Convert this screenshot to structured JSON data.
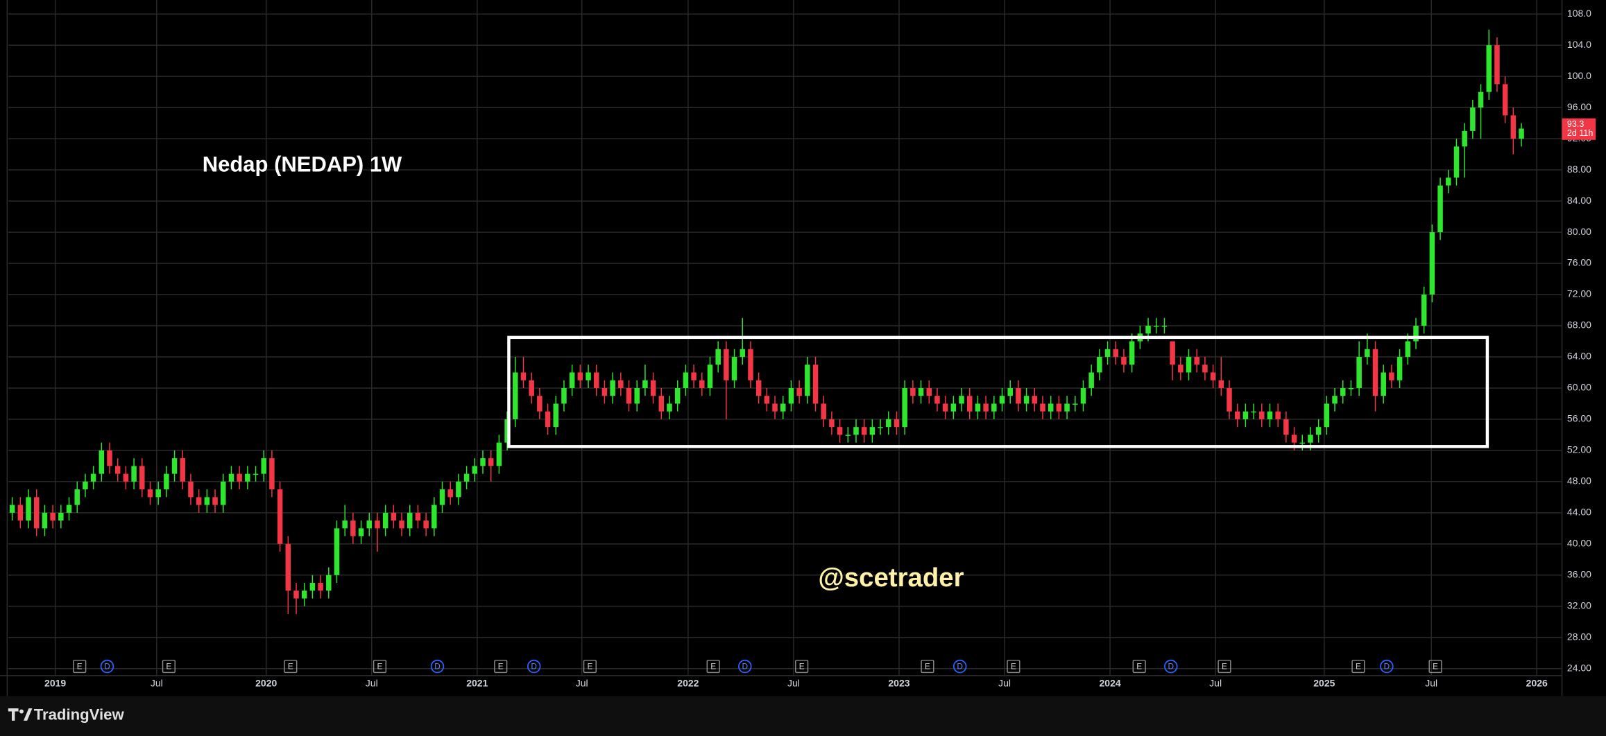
{
  "chart_data": {
    "type": "candlestick",
    "title": "Nedap (NEDAP) 1W",
    "watermark": "@scetrader",
    "brand": "TradingView",
    "up_color": "#2ee62e",
    "down_color": "#f23645",
    "grid": true,
    "countdown": "2d 11h",
    "xlim": [
      -0.5,
      191
    ],
    "xticks": [
      {
        "value": 5.3,
        "label": "2019"
      },
      {
        "value": 17.8,
        "label": "Jul"
      },
      {
        "value": 31.3,
        "label": "2020"
      },
      {
        "value": 44.3,
        "label": "Jul"
      },
      {
        "value": 57.3,
        "label": "2021"
      },
      {
        "value": 70.2,
        "label": "Jul"
      },
      {
        "value": 83.3,
        "label": "2022"
      },
      {
        "value": 96.3,
        "label": "Jul"
      },
      {
        "value": 109.3,
        "label": "2023"
      },
      {
        "value": 122.3,
        "label": "Jul"
      },
      {
        "value": 135.3,
        "label": "2024"
      },
      {
        "value": 148.3,
        "label": "Jul"
      },
      {
        "value": 161.7,
        "label": "2025"
      },
      {
        "value": 174.9,
        "label": "Jul"
      },
      {
        "value": 187.9,
        "label": "2026"
      }
    ],
    "ylim": [
      23.1,
      109.8
    ],
    "yticks": [
      {
        "value": 24,
        "label": "24.00"
      },
      {
        "value": 28,
        "label": "28.00"
      },
      {
        "value": 32,
        "label": "32.00"
      },
      {
        "value": 36,
        "label": "36.00"
      },
      {
        "value": 40,
        "label": "40.00"
      },
      {
        "value": 44,
        "label": "44.00"
      },
      {
        "value": 48,
        "label": "48.00"
      },
      {
        "value": 52,
        "label": "52.00"
      },
      {
        "value": 56,
        "label": "56.00"
      },
      {
        "value": 60,
        "label": "60.00"
      },
      {
        "value": 64,
        "label": "64.00"
      },
      {
        "value": 68,
        "label": "68.00"
      },
      {
        "value": 72,
        "label": "72.00"
      },
      {
        "value": 76,
        "label": "76.00"
      },
      {
        "value": 80,
        "label": "80.00"
      },
      {
        "value": 84,
        "label": "84.00"
      },
      {
        "value": 88,
        "label": "88.00"
      },
      {
        "value": 92,
        "label": "92.00"
      },
      {
        "value": 96,
        "label": "96.00"
      },
      {
        "value": 100,
        "label": "100.0"
      },
      {
        "value": 104,
        "label": "104.0"
      },
      {
        "value": 108,
        "label": "108.0"
      }
    ],
    "box": {
      "x": [
        61.2,
        181.8
      ],
      "y": [
        52.5,
        66.5
      ]
    },
    "events": [
      {
        "label": "E",
        "x": 8.3
      },
      {
        "label": "D",
        "x": 11.7
      },
      {
        "label": "E",
        "x": 19.3
      },
      {
        "label": "E",
        "x": 34.3
      },
      {
        "label": "E",
        "x": 45.3
      },
      {
        "label": "D",
        "x": 52.4
      },
      {
        "label": "E",
        "x": 60.2
      },
      {
        "label": "D",
        "x": 64.3
      },
      {
        "label": "E",
        "x": 71.2
      },
      {
        "label": "E",
        "x": 86.4
      },
      {
        "label": "D",
        "x": 90.3
      },
      {
        "label": "E",
        "x": 97.3
      },
      {
        "label": "E",
        "x": 112.8
      },
      {
        "label": "D",
        "x": 116.8
      },
      {
        "label": "E",
        "x": 123.4
      },
      {
        "label": "E",
        "x": 138.9
      },
      {
        "label": "D",
        "x": 142.8
      },
      {
        "label": "E",
        "x": 149.4
      },
      {
        "label": "E",
        "x": 165.9
      },
      {
        "label": "D",
        "x": 169.4
      },
      {
        "label": "E",
        "x": 175.4
      }
    ],
    "ohlc": [
      [
        44,
        46,
        43,
        45
      ],
      [
        45,
        46,
        42,
        43
      ],
      [
        43,
        47,
        42,
        46
      ],
      [
        46,
        47,
        41,
        42
      ],
      [
        42,
        45,
        41,
        44
      ],
      [
        44,
        45,
        42,
        43
      ],
      [
        43,
        45,
        42,
        44
      ],
      [
        44,
        46,
        43,
        45
      ],
      [
        45,
        48,
        44,
        47
      ],
      [
        47,
        49,
        46,
        48
      ],
      [
        48,
        50,
        47,
        49
      ],
      [
        49,
        53,
        48,
        52
      ],
      [
        52,
        53,
        49,
        50
      ],
      [
        50,
        51,
        48,
        49
      ],
      [
        49,
        50,
        47,
        48
      ],
      [
        48,
        51,
        47,
        50
      ],
      [
        50,
        51,
        46,
        47
      ],
      [
        47,
        48,
        45,
        46
      ],
      [
        46,
        48,
        45,
        47
      ],
      [
        47,
        50,
        46,
        49
      ],
      [
        49,
        52,
        48,
        51
      ],
      [
        51,
        52,
        47,
        48
      ],
      [
        48,
        49,
        45,
        46
      ],
      [
        46,
        47,
        44,
        45
      ],
      [
        45,
        47,
        44,
        46
      ],
      [
        46,
        47,
        44,
        45
      ],
      [
        45,
        49,
        44,
        48
      ],
      [
        48,
        50,
        47,
        49
      ],
      [
        49,
        50,
        47,
        48
      ],
      [
        48,
        50,
        47,
        49
      ],
      [
        49,
        50,
        48,
        49
      ],
      [
        49,
        52,
        48,
        51
      ],
      [
        51,
        52,
        46,
        47
      ],
      [
        47,
        48,
        39,
        40
      ],
      [
        40,
        41,
        31,
        34
      ],
      [
        34,
        35,
        31,
        33
      ],
      [
        33,
        35,
        32,
        34
      ],
      [
        34,
        36,
        33,
        35
      ],
      [
        35,
        36,
        33,
        34
      ],
      [
        34,
        37,
        33,
        36
      ],
      [
        36,
        43,
        35,
        42
      ],
      [
        42,
        45,
        41,
        43
      ],
      [
        43,
        44,
        40,
        41
      ],
      [
        41,
        43,
        40,
        42
      ],
      [
        42,
        44,
        41,
        43
      ],
      [
        43,
        44,
        39,
        42
      ],
      [
        42,
        45,
        41,
        44
      ],
      [
        44,
        45,
        42,
        43
      ],
      [
        43,
        44,
        41,
        42
      ],
      [
        42,
        45,
        41,
        44
      ],
      [
        44,
        45,
        42,
        43
      ],
      [
        43,
        44,
        41,
        42
      ],
      [
        42,
        46,
        41,
        45
      ],
      [
        45,
        48,
        44,
        47
      ],
      [
        47,
        48,
        45,
        46
      ],
      [
        46,
        49,
        45,
        48
      ],
      [
        48,
        50,
        47,
        49
      ],
      [
        49,
        51,
        48,
        50
      ],
      [
        50,
        52,
        49,
        51
      ],
      [
        51,
        52,
        48,
        50
      ],
      [
        50,
        54,
        49,
        53
      ],
      [
        53,
        57,
        52,
        56
      ],
      [
        56,
        64,
        55,
        62
      ],
      [
        62,
        64,
        60,
        61
      ],
      [
        61,
        62,
        58,
        59
      ],
      [
        59,
        60,
        56,
        57
      ],
      [
        57,
        58,
        54,
        55
      ],
      [
        55,
        59,
        54,
        58
      ],
      [
        58,
        61,
        57,
        60
      ],
      [
        60,
        63,
        59,
        62
      ],
      [
        62,
        63,
        60,
        61
      ],
      [
        61,
        63,
        60,
        62
      ],
      [
        62,
        63,
        59,
        60
      ],
      [
        60,
        61,
        58,
        59
      ],
      [
        59,
        62,
        58,
        61
      ],
      [
        61,
        62,
        59,
        60
      ],
      [
        60,
        61,
        57,
        58
      ],
      [
        58,
        61,
        57,
        60
      ],
      [
        60,
        63,
        59,
        61
      ],
      [
        61,
        62,
        58,
        59
      ],
      [
        59,
        60,
        56,
        57
      ],
      [
        57,
        59,
        56,
        58
      ],
      [
        58,
        61,
        57,
        60
      ],
      [
        60,
        63,
        59,
        62
      ],
      [
        62,
        63,
        60,
        61
      ],
      [
        61,
        62,
        59,
        60
      ],
      [
        60,
        64,
        59,
        63
      ],
      [
        63,
        66,
        62,
        65
      ],
      [
        65,
        66,
        56,
        61
      ],
      [
        61,
        65,
        60,
        64
      ],
      [
        64,
        69,
        63,
        65
      ],
      [
        65,
        66,
        60,
        61
      ],
      [
        61,
        62,
        58,
        59
      ],
      [
        59,
        60,
        57,
        58
      ],
      [
        58,
        59,
        56,
        57
      ],
      [
        57,
        59,
        56,
        58
      ],
      [
        58,
        61,
        57,
        60
      ],
      [
        60,
        61,
        58,
        59
      ],
      [
        59,
        64,
        58,
        63
      ],
      [
        63,
        64,
        57,
        58
      ],
      [
        58,
        59,
        55,
        56
      ],
      [
        56,
        57,
        54,
        55
      ],
      [
        55,
        56,
        53,
        54
      ],
      [
        54,
        55,
        53,
        54
      ],
      [
        54,
        56,
        53,
        55
      ],
      [
        55,
        56,
        53,
        54
      ],
      [
        54,
        56,
        53,
        55
      ],
      [
        55,
        56,
        54,
        55
      ],
      [
        55,
        57,
        54,
        56
      ],
      [
        56,
        57,
        54,
        55
      ],
      [
        55,
        61,
        54,
        60
      ],
      [
        60,
        61,
        58,
        59
      ],
      [
        59,
        61,
        58,
        60
      ],
      [
        60,
        61,
        58,
        59
      ],
      [
        59,
        60,
        57,
        58
      ],
      [
        58,
        59,
        56,
        57
      ],
      [
        57,
        59,
        56,
        58
      ],
      [
        58,
        60,
        57,
        59
      ],
      [
        59,
        60,
        56,
        57
      ],
      [
        57,
        59,
        56,
        58
      ],
      [
        58,
        59,
        56,
        57
      ],
      [
        57,
        59,
        56,
        58
      ],
      [
        58,
        60,
        57,
        59
      ],
      [
        59,
        61,
        58,
        60
      ],
      [
        60,
        61,
        57,
        58
      ],
      [
        58,
        60,
        57,
        59
      ],
      [
        59,
        60,
        57,
        58
      ],
      [
        58,
        59,
        56,
        57
      ],
      [
        57,
        59,
        56,
        58
      ],
      [
        58,
        59,
        56,
        57
      ],
      [
        57,
        59,
        56,
        58
      ],
      [
        58,
        59,
        57,
        58
      ],
      [
        58,
        61,
        57,
        60
      ],
      [
        60,
        63,
        59,
        62
      ],
      [
        62,
        65,
        61,
        64
      ],
      [
        64,
        66,
        63,
        65
      ],
      [
        65,
        66,
        63,
        64
      ],
      [
        64,
        65,
        62,
        63
      ],
      [
        63,
        67,
        62,
        66
      ],
      [
        66,
        68,
        65,
        67
      ],
      [
        67,
        69,
        66,
        68
      ],
      [
        68,
        69,
        67,
        68
      ],
      [
        68,
        69,
        67,
        68
      ],
      [
        66,
        66,
        61,
        63
      ],
      [
        63,
        64,
        61,
        62
      ],
      [
        62,
        65,
        61,
        64
      ],
      [
        64,
        65,
        62,
        63
      ],
      [
        63,
        64,
        61,
        62
      ],
      [
        62,
        63,
        60,
        61
      ],
      [
        61,
        64,
        59,
        60
      ],
      [
        60,
        61,
        56,
        57
      ],
      [
        57,
        58,
        55,
        56
      ],
      [
        56,
        58,
        55,
        57
      ],
      [
        57,
        58,
        56,
        57
      ],
      [
        57,
        58,
        55,
        56
      ],
      [
        56,
        58,
        55,
        57
      ],
      [
        57,
        58,
        55,
        56
      ],
      [
        56,
        57,
        53,
        54
      ],
      [
        54,
        55,
        52,
        53
      ],
      [
        53,
        54,
        52,
        53
      ],
      [
        53,
        55,
        52,
        54
      ],
      [
        54,
        56,
        53,
        55
      ],
      [
        55,
        59,
        54,
        58
      ],
      [
        58,
        60,
        57,
        59
      ],
      [
        59,
        61,
        58,
        60
      ],
      [
        60,
        61,
        59,
        60
      ],
      [
        60,
        66,
        59,
        64
      ],
      [
        64,
        67,
        63,
        65
      ],
      [
        65,
        66,
        57,
        59
      ],
      [
        59,
        63,
        58,
        62
      ],
      [
        62,
        63,
        60,
        61
      ],
      [
        61,
        65,
        60,
        64
      ],
      [
        64,
        67,
        63,
        66
      ],
      [
        66,
        69,
        65,
        68
      ],
      [
        68,
        73,
        67,
        72
      ],
      [
        72,
        81,
        71,
        80
      ],
      [
        80,
        87,
        79,
        86
      ],
      [
        86,
        88,
        85,
        87
      ],
      [
        87,
        92,
        86,
        91
      ],
      [
        91,
        94,
        87,
        93
      ],
      [
        93,
        97,
        92,
        96
      ],
      [
        96,
        99,
        92,
        98
      ],
      [
        98,
        106,
        97,
        104
      ],
      [
        104,
        105,
        98,
        99
      ],
      [
        99,
        100,
        94,
        95
      ],
      [
        95,
        96,
        90,
        92
      ],
      [
        92,
        94,
        91,
        93.3
      ]
    ]
  }
}
